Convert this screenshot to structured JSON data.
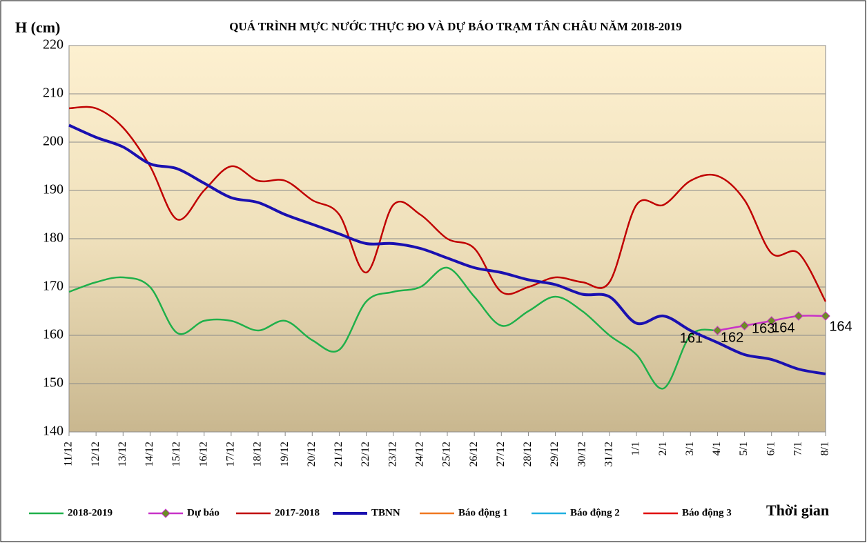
{
  "chart_data": {
    "type": "line",
    "title": "QUÁ TRÌNH MỰC NƯỚC THỰC ĐO VÀ DỰ BÁO TRẠM TÂN CHÂU NĂM 2018-2019",
    "y_label": "H (cm)",
    "x_label": "Thời gian",
    "categories": [
      "11/12",
      "12/12",
      "13/12",
      "14/12",
      "15/12",
      "16/12",
      "17/12",
      "18/12",
      "19/12",
      "20/12",
      "21/12",
      "22/12",
      "23/12",
      "24/12",
      "25/12",
      "26/12",
      "27/12",
      "28/12",
      "29/12",
      "30/12",
      "31/12",
      "1/1",
      "2/1",
      "3/1",
      "4/1",
      "5/1",
      "6/1",
      "7/1",
      "8/1"
    ],
    "ylim": [
      140,
      220
    ],
    "yticks": [
      140,
      150,
      160,
      170,
      180,
      190,
      200,
      210,
      220
    ],
    "grid": true,
    "series": [
      {
        "name": "2018-2019",
        "color": "#1fb04a",
        "values": [
          169,
          171,
          172,
          170,
          160.5,
          163,
          163,
          161,
          163,
          159,
          157,
          167,
          169,
          170,
          174,
          168,
          162,
          165,
          168,
          165,
          160,
          156,
          149,
          160,
          161,
          null,
          null,
          null,
          null
        ]
      },
      {
        "name": "Dự báo",
        "color": "#c832c8",
        "marker": "diamond",
        "marker_color": "#6b8e23",
        "data_labels": true,
        "values": [
          null,
          null,
          null,
          null,
          null,
          null,
          null,
          null,
          null,
          null,
          null,
          null,
          null,
          null,
          null,
          null,
          null,
          null,
          null,
          null,
          null,
          null,
          null,
          null,
          161,
          162,
          163,
          164,
          164
        ]
      },
      {
        "name": "2017-2018",
        "color": "#c00000",
        "values": [
          207,
          207,
          203,
          195,
          184,
          190,
          195,
          192,
          192,
          188,
          185,
          173,
          187,
          185,
          180,
          178,
          169,
          170,
          172,
          171,
          171,
          187,
          187,
          192,
          193,
          188,
          177,
          177,
          167
        ]
      },
      {
        "name": "TBNN",
        "color": "#1a10b0",
        "width": 4,
        "values": [
          203.5,
          201,
          199,
          195.5,
          194.5,
          191.5,
          188.5,
          187.5,
          185,
          183,
          181,
          179,
          179,
          178,
          176,
          174,
          173,
          171.5,
          170.5,
          168.5,
          168,
          162.5,
          164,
          161,
          158.5,
          156,
          155,
          153,
          152
        ]
      },
      {
        "name": "Báo động 1",
        "color": "#f07820"
      },
      {
        "name": "Báo động 2",
        "color": "#20b0e0"
      },
      {
        "name": "Báo động 3",
        "color": "#e00000"
      }
    ]
  }
}
